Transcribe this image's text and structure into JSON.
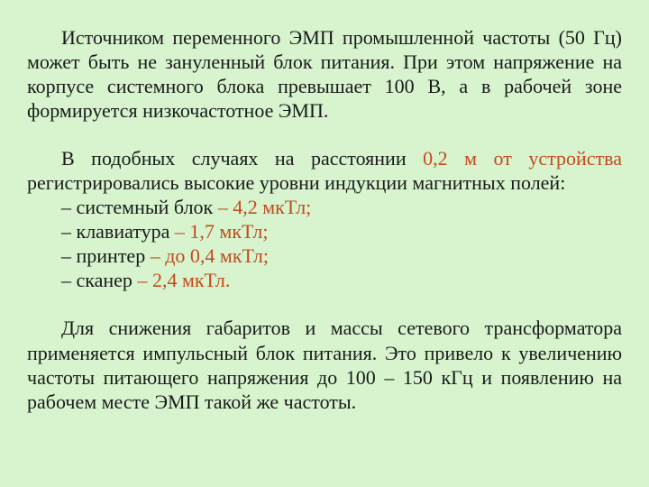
{
  "colors": {
    "background": "#d7f4ce",
    "text": "#1a1a1a",
    "highlight": "#c44a1c"
  },
  "typography": {
    "font_family": "Times New Roman",
    "font_size_pt": 16,
    "line_height": 1.23
  },
  "paragraph1": {
    "text": "Источником переменного ЭМП промышленной частоты (50 Гц) может быть не зануленный блок питания. При этом напряжение на корпусе системного блока превышает 100 В, а в рабочей зоне формируется низкочастотное ЭМП."
  },
  "paragraph2": {
    "lead": "В подобных случаях на расстоянии ",
    "distance": "0,2 м от устройства",
    "tail": " регистрировались высокие уровни индукции магнитных полей:"
  },
  "items": [
    {
      "label": "– системный блок ",
      "value": "– 4,2 мкТл;"
    },
    {
      "label": "– клавиатура ",
      "value": "– 1,7 мкТл;"
    },
    {
      "label": "– принтер ",
      "value": "– до 0,4 мкТл;"
    },
    {
      "label": "– сканер ",
      "value": "– 2,4 мкТл."
    }
  ],
  "paragraph3": {
    "text": "Для снижения габаритов и массы сетевого трансформатора применяется импульсный блок питания. Это привело к увеличению частоты питающего напряжения до 100 – 150 кГц и появлению на рабочем месте ЭМП такой же частоты."
  }
}
